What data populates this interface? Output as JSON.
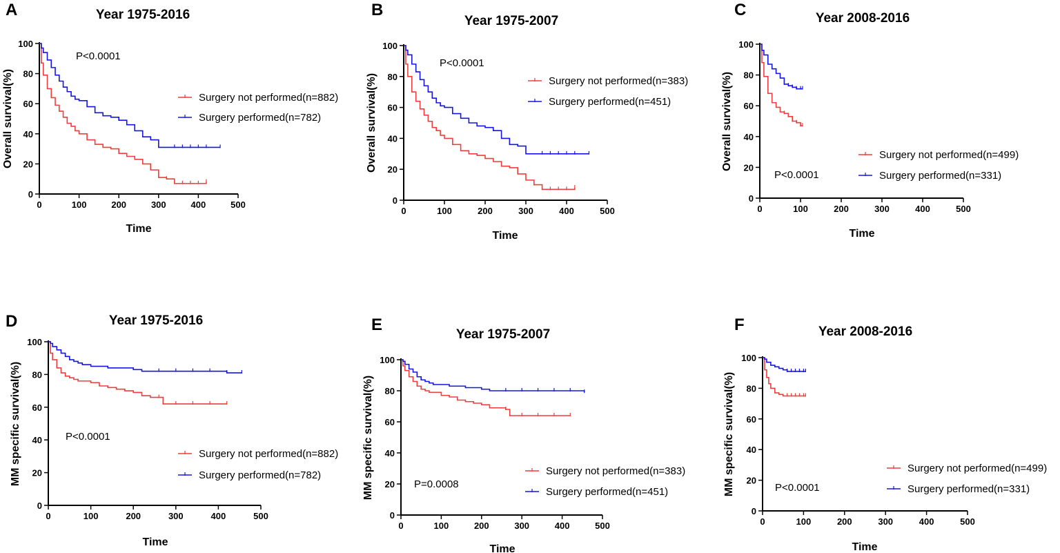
{
  "colors": {
    "not_performed": "#f03c3c",
    "performed": "#1414e6",
    "axis": "#000000"
  },
  "chart_data": [
    {
      "panel": "A",
      "type": "line",
      "title": "Year 1975-2016",
      "xlabel": "Time",
      "ylabel": "Overall survival(%)",
      "xlim": [
        0,
        500
      ],
      "ylim": [
        0,
        100
      ],
      "xticks": [
        "0",
        "100",
        "200",
        "300",
        "400",
        "500"
      ],
      "yticks": [
        "0",
        "20",
        "40",
        "60",
        "80",
        "100"
      ],
      "pvalue": "P<0.0001",
      "legend_position": "right",
      "series": [
        {
          "name": "Surgery not performed(n=882)",
          "key": "not_performed",
          "x": [
            0,
            5,
            10,
            20,
            30,
            40,
            50,
            60,
            70,
            80,
            90,
            100,
            120,
            140,
            160,
            180,
            200,
            220,
            240,
            260,
            280,
            300,
            320,
            340,
            360,
            380,
            400,
            420
          ],
          "y": [
            100,
            87,
            79,
            70,
            64,
            59,
            55,
            51,
            47,
            45,
            42,
            40,
            36,
            33,
            31,
            30,
            27,
            25,
            23,
            20,
            16,
            11,
            10,
            7,
            7,
            7,
            7,
            8
          ]
        },
        {
          "name": "Surgery performed(n=782)",
          "key": "performed",
          "x": [
            0,
            5,
            10,
            20,
            30,
            40,
            50,
            60,
            70,
            80,
            90,
            100,
            120,
            140,
            160,
            180,
            200,
            220,
            240,
            260,
            280,
            300,
            320,
            340,
            360,
            380,
            400,
            420,
            455
          ],
          "y": [
            100,
            97,
            94,
            89,
            84,
            79,
            75,
            71,
            68,
            65,
            63,
            62,
            58,
            54,
            52,
            51,
            49,
            46,
            42,
            38,
            36,
            31,
            31,
            31,
            31,
            31,
            31,
            31,
            31
          ]
        }
      ]
    },
    {
      "panel": "B",
      "type": "line",
      "title": "Year 1975-2007",
      "xlabel": "Time",
      "ylabel": "Overall survival(%)",
      "xlim": [
        0,
        500
      ],
      "ylim": [
        0,
        100
      ],
      "xticks": [
        "0",
        "100",
        "200",
        "300",
        "400",
        "500"
      ],
      "yticks": [
        "0",
        "20",
        "40",
        "60",
        "80",
        "100"
      ],
      "pvalue": "P<0.0001",
      "legend_position": "right",
      "series": [
        {
          "name": "Surgery not performed(n=383)",
          "key": "not_performed",
          "x": [
            0,
            5,
            10,
            20,
            30,
            40,
            50,
            60,
            70,
            80,
            90,
            100,
            120,
            140,
            160,
            180,
            200,
            220,
            240,
            260,
            280,
            300,
            320,
            340,
            360,
            380,
            400,
            420
          ],
          "y": [
            100,
            88,
            80,
            70,
            64,
            59,
            55,
            51,
            47,
            45,
            42,
            40,
            36,
            32,
            30,
            29,
            27,
            25,
            22,
            21,
            17,
            13,
            10,
            7,
            7,
            7,
            7,
            8
          ]
        },
        {
          "name": "Surgery performed(n=451)",
          "key": "performed",
          "x": [
            0,
            5,
            10,
            20,
            30,
            40,
            50,
            60,
            70,
            80,
            90,
            100,
            120,
            140,
            160,
            180,
            200,
            220,
            240,
            260,
            280,
            300,
            320,
            340,
            360,
            380,
            400,
            420,
            455
          ],
          "y": [
            100,
            97,
            94,
            88,
            83,
            78,
            74,
            70,
            66,
            63,
            61,
            60,
            56,
            53,
            50,
            48,
            47,
            45,
            40,
            36,
            35,
            30,
            30,
            30,
            30,
            30,
            30,
            30,
            30
          ]
        }
      ]
    },
    {
      "panel": "C",
      "type": "line",
      "title": "Year 2008-2016",
      "xlabel": "Time",
      "ylabel": "Overall survival(%)",
      "xlim": [
        0,
        500
      ],
      "ylim": [
        0,
        100
      ],
      "xticks": [
        "0",
        "100",
        "200",
        "300",
        "400",
        "500"
      ],
      "yticks": [
        "0",
        "20",
        "40",
        "60",
        "80",
        "100"
      ],
      "pvalue": "P<0.0001",
      "legend_position": "right",
      "series": [
        {
          "name": "Surgery not performed(n=499)",
          "key": "not_performed",
          "x": [
            0,
            5,
            10,
            20,
            30,
            40,
            50,
            60,
            70,
            80,
            90,
            100,
            105
          ],
          "y": [
            100,
            88,
            79,
            68,
            62,
            59,
            56,
            55,
            53,
            50,
            49,
            47,
            47
          ]
        },
        {
          "name": "Surgery performed(n=331)",
          "key": "performed",
          "x": [
            0,
            5,
            10,
            20,
            30,
            40,
            50,
            60,
            70,
            80,
            90,
            100,
            105
          ],
          "y": [
            100,
            96,
            93,
            87,
            84,
            81,
            78,
            74,
            73,
            72,
            71,
            71,
            71
          ]
        }
      ]
    },
    {
      "panel": "D",
      "type": "line",
      "title": "Year 1975-2016",
      "xlabel": "Time",
      "ylabel": "MM specific survival(%)",
      "xlim": [
        0,
        500
      ],
      "ylim": [
        0,
        100
      ],
      "xticks": [
        "0",
        "100",
        "200",
        "300",
        "400",
        "500"
      ],
      "yticks": [
        "0",
        "20",
        "40",
        "60",
        "80",
        "100"
      ],
      "pvalue": "P<0.0001",
      "legend_position": "bottom-right",
      "series": [
        {
          "name": "Surgery not performed(n=882)",
          "key": "not_performed",
          "x": [
            0,
            5,
            10,
            20,
            30,
            40,
            50,
            60,
            70,
            80,
            100,
            120,
            140,
            160,
            180,
            200,
            220,
            240,
            260,
            270,
            300,
            340,
            380,
            420
          ],
          "y": [
            100,
            93,
            89,
            84,
            81,
            79,
            78,
            77,
            76,
            76,
            75,
            73,
            72,
            71,
            70,
            69,
            67,
            66,
            66,
            62,
            62,
            62,
            62,
            62
          ]
        },
        {
          "name": "Surgery performed(n=782)",
          "key": "performed",
          "x": [
            0,
            5,
            10,
            20,
            30,
            40,
            50,
            60,
            70,
            80,
            100,
            120,
            140,
            160,
            180,
            200,
            220,
            240,
            260,
            300,
            340,
            380,
            420,
            455
          ],
          "y": [
            100,
            99,
            97,
            95,
            93,
            91,
            89,
            88,
            87,
            86,
            85,
            85,
            84,
            84,
            84,
            83,
            82,
            82,
            82,
            82,
            82,
            82,
            81,
            81
          ]
        }
      ]
    },
    {
      "panel": "E",
      "type": "line",
      "title": "Year 1975-2007",
      "xlabel": "Time",
      "ylabel": "MM specific survival(%)",
      "xlim": [
        0,
        500
      ],
      "ylim": [
        0,
        100
      ],
      "xticks": [
        "0",
        "100",
        "200",
        "300",
        "400",
        "500"
      ],
      "yticks": [
        "0",
        "20",
        "40",
        "60",
        "80",
        "100"
      ],
      "pvalue": "P=0.0008",
      "legend_position": "bottom-right",
      "series": [
        {
          "name": "Surgery not performed(n=383)",
          "key": "not_performed",
          "x": [
            0,
            5,
            10,
            20,
            30,
            40,
            50,
            60,
            70,
            80,
            100,
            120,
            140,
            160,
            180,
            200,
            220,
            240,
            260,
            270,
            300,
            340,
            380,
            420
          ],
          "y": [
            100,
            96,
            93,
            89,
            86,
            83,
            81,
            80,
            79,
            79,
            77,
            76,
            74,
            73,
            72,
            71,
            69,
            69,
            68,
            64,
            64,
            64,
            64,
            64
          ]
        },
        {
          "name": "Surgery performed(n=451)",
          "key": "performed",
          "x": [
            0,
            5,
            10,
            20,
            30,
            40,
            50,
            60,
            70,
            80,
            100,
            120,
            140,
            160,
            180,
            200,
            220,
            240,
            260,
            300,
            340,
            380,
            420,
            455
          ],
          "y": [
            100,
            99,
            97,
            94,
            92,
            89,
            87,
            86,
            85,
            84,
            84,
            83,
            83,
            82,
            82,
            81,
            80,
            80,
            80,
            80,
            80,
            80,
            80,
            79
          ]
        }
      ]
    },
    {
      "panel": "F",
      "type": "line",
      "title": "Year 2008-2016",
      "xlabel": "Time",
      "ylabel": "MM specific survival(%)",
      "xlim": [
        0,
        500
      ],
      "ylim": [
        0,
        100
      ],
      "xticks": [
        "0",
        "100",
        "200",
        "300",
        "400",
        "500"
      ],
      "yticks": [
        "0",
        "20",
        "40",
        "60",
        "80",
        "100"
      ],
      "pvalue": "P<0.0001",
      "legend_position": "bottom-right",
      "series": [
        {
          "name": "Surgery not performed(n=499)",
          "key": "not_performed",
          "x": [
            0,
            5,
            10,
            15,
            20,
            30,
            40,
            50,
            60,
            70,
            80,
            90,
            100,
            105
          ],
          "y": [
            100,
            92,
            87,
            83,
            80,
            77,
            76,
            75,
            75,
            75,
            75,
            75,
            75,
            75
          ]
        },
        {
          "name": "Surgery performed(n=331)",
          "key": "performed",
          "x": [
            0,
            5,
            10,
            20,
            30,
            40,
            50,
            60,
            70,
            80,
            90,
            100,
            105
          ],
          "y": [
            100,
            99,
            97,
            95,
            94,
            93,
            92,
            91,
            91,
            91,
            91,
            91,
            91
          ]
        }
      ]
    }
  ]
}
